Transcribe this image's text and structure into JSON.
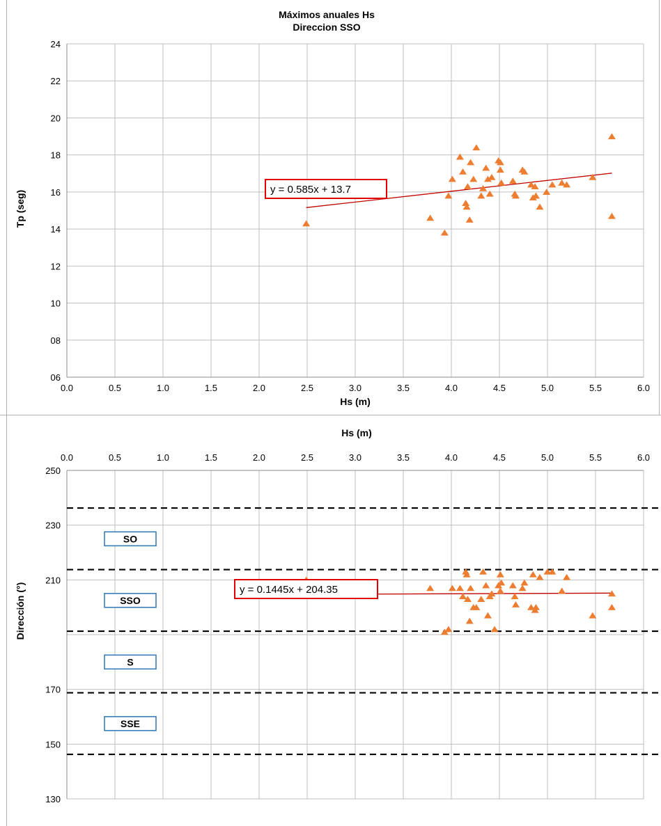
{
  "chart_data": [
    {
      "type": "scatter",
      "title": [
        "Máximos anuales Hs",
        "Direccion SSO"
      ],
      "xlabel": "Hs (m)",
      "ylabel": "Tp (seg)",
      "xlim": [
        0,
        6
      ],
      "ylim": [
        6,
        24
      ],
      "x_ticks": [
        "0.0",
        "0.5",
        "1.0",
        "1.5",
        "2.0",
        "2.5",
        "3.0",
        "3.5",
        "4.0",
        "4.5",
        "5.0",
        "5.5",
        "6.0"
      ],
      "y_ticks": [
        "06",
        "08",
        "10",
        "12",
        "14",
        "16",
        "18",
        "20",
        "22",
        "24"
      ],
      "y_tick_values": [
        6,
        8,
        10,
        12,
        14,
        16,
        18,
        20,
        22,
        24
      ],
      "grid": true,
      "marker_color": "#ED7D31",
      "trend_color": "#C00000",
      "trendline": {
        "slope": 0.585,
        "intercept": 13.7,
        "x_range": [
          2.49,
          5.67
        ],
        "label": "y = 0.585x + 13.7"
      },
      "points": [
        [
          2.49,
          14.3
        ],
        [
          3.78,
          14.6
        ],
        [
          3.93,
          13.8
        ],
        [
          3.97,
          15.8
        ],
        [
          4.01,
          16.7
        ],
        [
          4.09,
          17.9
        ],
        [
          4.12,
          17.1
        ],
        [
          4.15,
          15.4
        ],
        [
          4.16,
          15.2
        ],
        [
          4.17,
          16.3
        ],
        [
          4.19,
          14.5
        ],
        [
          4.2,
          17.6
        ],
        [
          4.23,
          16.7
        ],
        [
          4.26,
          18.4
        ],
        [
          4.31,
          15.8
        ],
        [
          4.33,
          16.2
        ],
        [
          4.36,
          17.3
        ],
        [
          4.38,
          16.7
        ],
        [
          4.4,
          15.9
        ],
        [
          4.42,
          16.8
        ],
        [
          4.49,
          17.7
        ],
        [
          4.51,
          17.6
        ],
        [
          4.51,
          17.2
        ],
        [
          4.52,
          16.5
        ],
        [
          4.64,
          16.6
        ],
        [
          4.66,
          15.9
        ],
        [
          4.67,
          15.8
        ],
        [
          4.74,
          17.2
        ],
        [
          4.76,
          17.1
        ],
        [
          4.83,
          16.4
        ],
        [
          4.85,
          15.7
        ],
        [
          4.87,
          16.3
        ],
        [
          4.88,
          15.8
        ],
        [
          4.92,
          15.2
        ],
        [
          4.99,
          16
        ],
        [
          5.05,
          16.4
        ],
        [
          5.15,
          16.5
        ],
        [
          5.2,
          16.4
        ],
        [
          5.47,
          16.8
        ],
        [
          5.67,
          19
        ],
        [
          5.67,
          14.7
        ]
      ]
    },
    {
      "type": "scatter",
      "xlabel": "Hs (m)",
      "ylabel": "Dirección (°)",
      "xlim": [
        0,
        6
      ],
      "ylim": [
        130,
        250
      ],
      "x_ticks": [
        "0.0",
        "0.5",
        "1.0",
        "1.5",
        "2.0",
        "2.5",
        "3.0",
        "3.5",
        "4.0",
        "4.5",
        "5.0",
        "5.5",
        "6.0"
      ],
      "y_ticks": [
        "130",
        "150",
        "170",
        "210",
        "230",
        "250"
      ],
      "y_tick_values": [
        130,
        150,
        170,
        210,
        230,
        250
      ],
      "x_axis_position": "top",
      "grid": true,
      "marker_color": "#ED7D31",
      "trend_color": "#C00000",
      "trendline": {
        "slope": 0.1445,
        "intercept": 204.35,
        "x_range": [
          2.49,
          5.67
        ],
        "label": "y = 0.1445x + 204.35"
      },
      "sector_limits": [
        146.25,
        168.75,
        191.25,
        213.75,
        236.25
      ],
      "zones": [
        {
          "label": "SO",
          "center": 225
        },
        {
          "label": "SSO",
          "center": 202.5
        },
        {
          "label": "S",
          "center": 180
        },
        {
          "label": "SSE",
          "center": 157.5
        }
      ],
      "zone_box_color": "#2E75B6",
      "points": [
        [
          2.49,
          210
        ],
        [
          3.78,
          207
        ],
        [
          3.93,
          191
        ],
        [
          3.97,
          192
        ],
        [
          4.01,
          207
        ],
        [
          4.09,
          207
        ],
        [
          4.12,
          204
        ],
        [
          4.15,
          213
        ],
        [
          4.16,
          212
        ],
        [
          4.17,
          203
        ],
        [
          4.19,
          195
        ],
        [
          4.2,
          207
        ],
        [
          4.23,
          200
        ],
        [
          4.26,
          200
        ],
        [
          4.31,
          203
        ],
        [
          4.33,
          213
        ],
        [
          4.36,
          208
        ],
        [
          4.38,
          197
        ],
        [
          4.4,
          204
        ],
        [
          4.42,
          205
        ],
        [
          4.45,
          192
        ],
        [
          4.49,
          208
        ],
        [
          4.51,
          212
        ],
        [
          4.51,
          206
        ],
        [
          4.52,
          209
        ],
        [
          4.64,
          208
        ],
        [
          4.66,
          204
        ],
        [
          4.67,
          201
        ],
        [
          4.74,
          207
        ],
        [
          4.76,
          209
        ],
        [
          4.83,
          200
        ],
        [
          4.85,
          212
        ],
        [
          4.87,
          199
        ],
        [
          4.88,
          200
        ],
        [
          4.92,
          211
        ],
        [
          5,
          213
        ],
        [
          5.05,
          213
        ],
        [
          5.15,
          206
        ],
        [
          5.2,
          211
        ],
        [
          5.47,
          197
        ],
        [
          5.67,
          205
        ],
        [
          5.67,
          200
        ]
      ]
    }
  ]
}
